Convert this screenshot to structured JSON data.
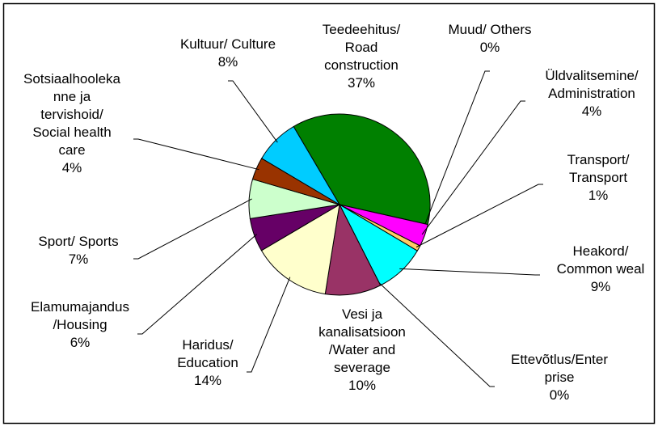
{
  "chart_data": {
    "type": "pie",
    "categories": [
      "Teedeehitus/\nRoad\nconstruction",
      "Muud/ Others",
      "Üldvalitsemine/\nAdministration",
      "Transport/\nTransport",
      "Heakord/\nCommon weal",
      "Ettevõtlus/Enter\nprise",
      "Vesi ja\nkanalisatsioon\n/Water and\nseverage",
      "Haridus/\nEducation",
      "Elamumajandus\n/Housing",
      "Sport/ Sports",
      "Sotsiaalhooleka\nnne ja\ntervishoid/\nSocial health\ncare",
      "Kultuur/ Culture"
    ],
    "values": [
      37,
      0,
      4,
      1,
      9,
      0,
      10,
      14,
      6,
      7,
      4,
      8
    ],
    "value_labels": [
      "37%",
      "0%",
      "4%",
      "1%",
      "9%",
      "0%",
      "10%",
      "14%",
      "6%",
      "7%",
      "4%",
      "8%"
    ],
    "colors": [
      "#008000",
      "#ff0000",
      "#ff00ff",
      "#ffcc66",
      "#00ffff",
      "#3366ff",
      "#993366",
      "#ffffcc",
      "#660066",
      "#ccffcc",
      "#993300",
      "#00ccff"
    ]
  }
}
